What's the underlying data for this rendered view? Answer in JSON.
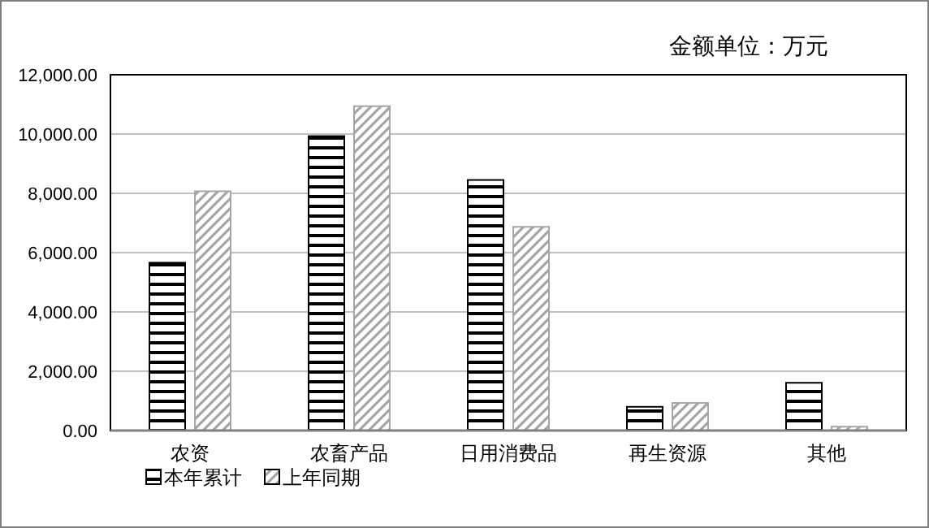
{
  "chart_data": {
    "type": "bar",
    "annotations": [
      "金额单位：万元"
    ],
    "categories": [
      "农资",
      "农畜产品",
      "日用消费品",
      "再生资源",
      "其他"
    ],
    "series": [
      {
        "name": "本年累计",
        "color": "#000000",
        "values": [
          5660,
          9930,
          8450,
          800,
          1610
        ]
      },
      {
        "name": "上年同期",
        "color": "#a6a6a6",
        "values": [
          8070,
          10940,
          6870,
          930,
          130
        ]
      }
    ],
    "ylim": [
      0,
      12000
    ],
    "yticks": [
      {
        "value": 0,
        "label": "0.00"
      },
      {
        "value": 2000,
        "label": "2,000.00"
      },
      {
        "value": 4000,
        "label": "4,000.00"
      },
      {
        "value": 6000,
        "label": "6,000.00"
      },
      {
        "value": 8000,
        "label": "8,000.00"
      },
      {
        "value": 10000,
        "label": "10,000.00"
      },
      {
        "value": 12000,
        "label": "12,000.00"
      }
    ],
    "grid": "y",
    "legend": "bottom left"
  }
}
